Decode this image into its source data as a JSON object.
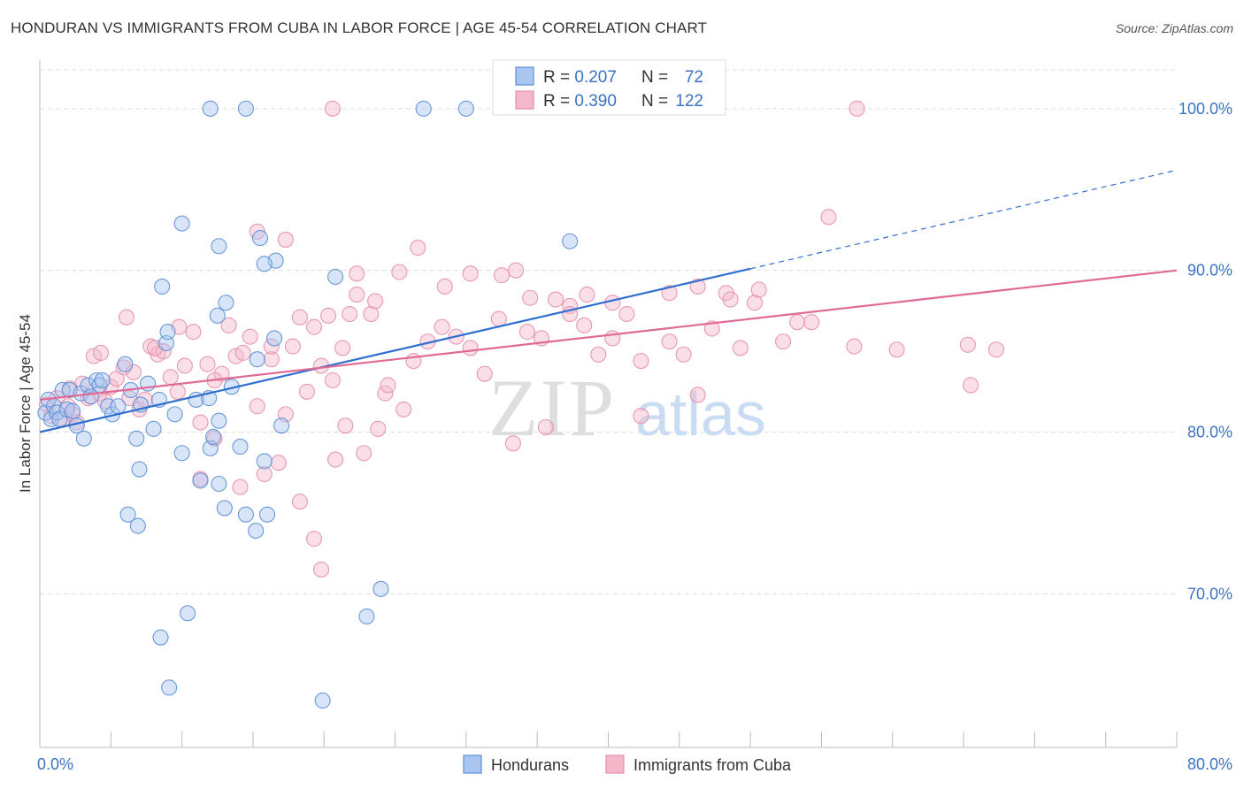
{
  "header": {
    "title": "HONDURAN VS IMMIGRANTS FROM CUBA IN LABOR FORCE | AGE 45-54 CORRELATION CHART",
    "source": "Source: ZipAtlas.com"
  },
  "watermark": {
    "zip": "ZIP",
    "atlas": "atlas"
  },
  "colors": {
    "blue_fill": "#a9c6f0",
    "blue_stroke": "#5b8fd6",
    "blue_line": "#2f6fcf",
    "pink_fill": "#f5b8cb",
    "pink_stroke": "#e58fab",
    "pink_line": "#e06a96",
    "tick_text": "#3b73c4",
    "grid": "#dddddd"
  },
  "legend": {
    "rows": [
      {
        "r_label": "R = ",
        "r_value": "0.207",
        "n_label": "N = ",
        "n_value": "72"
      },
      {
        "r_label": "R = ",
        "r_value": "0.390",
        "n_label": "N = ",
        "n_value": "122"
      }
    ]
  },
  "chart_data": {
    "type": "scatter",
    "title": "HONDURAN VS IMMIGRANTS FROM CUBA IN LABOR FORCE | AGE 45-54 CORRELATION CHART",
    "xlabel": "",
    "ylabel": "In Labor Force | Age 45-54",
    "xlim": [
      0,
      80
    ],
    "ylim": [
      60.5,
      103
    ],
    "x_tick_labels": [
      {
        "value": 0,
        "label": "0.0%"
      },
      {
        "value": 80,
        "label": "80.0%"
      }
    ],
    "y_ticks": [
      {
        "value": 70,
        "label": "70.0%"
      },
      {
        "value": 80,
        "label": "80.0%"
      },
      {
        "value": 90,
        "label": "90.0%"
      },
      {
        "value": 100,
        "label": "100.0%"
      }
    ],
    "series": [
      {
        "name": "Hondurans",
        "R": 0.207,
        "N": 72,
        "trend": {
          "x0": 0,
          "y0": 80.0,
          "x1": 50,
          "y1": 90.1,
          "dashed_to_x": 80,
          "dashed_to_y": 96.2
        },
        "points": [
          [
            0.4,
            81.2
          ],
          [
            0.6,
            82.0
          ],
          [
            0.8,
            80.8
          ],
          [
            1.0,
            81.6
          ],
          [
            1.2,
            81.2
          ],
          [
            1.4,
            80.8
          ],
          [
            1.6,
            82.6
          ],
          [
            1.9,
            81.4
          ],
          [
            2.1,
            82.6
          ],
          [
            2.3,
            81.3
          ],
          [
            2.6,
            80.4
          ],
          [
            2.9,
            82.4
          ],
          [
            3.1,
            79.6
          ],
          [
            3.4,
            82.9
          ],
          [
            3.6,
            82.2
          ],
          [
            4.0,
            83.2
          ],
          [
            4.2,
            82.9
          ],
          [
            4.4,
            83.2
          ],
          [
            4.8,
            81.6
          ],
          [
            5.1,
            81.1
          ],
          [
            5.5,
            81.6
          ],
          [
            6.0,
            84.2
          ],
          [
            6.4,
            82.6
          ],
          [
            6.8,
            79.6
          ],
          [
            7.1,
            81.7
          ],
          [
            7.6,
            83.0
          ],
          [
            8.0,
            80.2
          ],
          [
            8.4,
            82.0
          ],
          [
            8.9,
            85.5
          ],
          [
            8.6,
            89.0
          ],
          [
            9.0,
            86.2
          ],
          [
            9.5,
            81.1
          ],
          [
            10.0,
            78.7
          ],
          [
            11.0,
            82.0
          ],
          [
            12.0,
            79.0
          ],
          [
            12.5,
            87.2
          ],
          [
            13.0,
            75.3
          ],
          [
            13.5,
            82.8
          ],
          [
            14.1,
            79.1
          ],
          [
            14.5,
            74.9
          ],
          [
            15.3,
            84.5
          ],
          [
            15.8,
            78.2
          ],
          [
            16.5,
            85.8
          ],
          [
            17.0,
            80.4
          ],
          [
            7.0,
            77.7
          ],
          [
            9.1,
            64.2
          ],
          [
            10.4,
            68.8
          ],
          [
            8.5,
            67.3
          ],
          [
            11.3,
            77.0
          ],
          [
            12.2,
            79.7
          ],
          [
            12.6,
            76.8
          ],
          [
            12.6,
            80.7
          ],
          [
            11.9,
            82.1
          ],
          [
            15.2,
            73.9
          ],
          [
            16.0,
            74.9
          ],
          [
            15.5,
            92.0
          ],
          [
            16.6,
            90.6
          ],
          [
            15.8,
            90.4
          ],
          [
            10.0,
            92.9
          ],
          [
            12.6,
            91.5
          ],
          [
            13.1,
            88.0
          ],
          [
            20.8,
            89.6
          ],
          [
            37.3,
            91.8
          ],
          [
            24.0,
            70.3
          ],
          [
            23.0,
            68.6
          ],
          [
            19.9,
            63.4
          ],
          [
            12.0,
            100.0
          ],
          [
            14.5,
            100.0
          ],
          [
            27.0,
            100.0
          ],
          [
            30.0,
            100.0
          ],
          [
            6.2,
            74.9
          ],
          [
            6.9,
            74.2
          ]
        ]
      },
      {
        "name": "Immigrants from Cuba",
        "R": 0.39,
        "N": 122,
        "trend": {
          "x0": 0,
          "y0": 82.0,
          "x1": 80,
          "y1": 90.0
        },
        "points": [
          [
            0.5,
            81.7
          ],
          [
            0.8,
            81.0
          ],
          [
            1.2,
            82.1
          ],
          [
            1.6,
            80.8
          ],
          [
            2.0,
            81.6
          ],
          [
            2.3,
            81.1
          ],
          [
            2.6,
            80.6
          ],
          [
            3.0,
            83.0
          ],
          [
            3.4,
            82.1
          ],
          [
            3.8,
            84.7
          ],
          [
            4.2,
            82.4
          ],
          [
            4.6,
            81.9
          ],
          [
            5.0,
            82.8
          ],
          [
            5.4,
            83.3
          ],
          [
            5.9,
            84.0
          ],
          [
            6.3,
            82.1
          ],
          [
            6.6,
            83.7
          ],
          [
            7.0,
            81.4
          ],
          [
            7.4,
            82.0
          ],
          [
            7.8,
            85.3
          ],
          [
            8.3,
            84.8
          ],
          [
            8.7,
            85.0
          ],
          [
            9.2,
            83.4
          ],
          [
            9.7,
            82.5
          ],
          [
            10.2,
            84.1
          ],
          [
            10.8,
            86.2
          ],
          [
            11.3,
            80.6
          ],
          [
            11.8,
            84.2
          ],
          [
            12.3,
            79.6
          ],
          [
            12.8,
            83.6
          ],
          [
            13.3,
            86.6
          ],
          [
            13.8,
            84.7
          ],
          [
            14.3,
            84.9
          ],
          [
            14.8,
            85.9
          ],
          [
            15.3,
            81.6
          ],
          [
            15.8,
            77.4
          ],
          [
            16.3,
            84.5
          ],
          [
            16.8,
            78.1
          ],
          [
            17.3,
            81.1
          ],
          [
            17.8,
            85.3
          ],
          [
            18.3,
            87.1
          ],
          [
            18.8,
            82.5
          ],
          [
            19.3,
            86.5
          ],
          [
            19.8,
            84.1
          ],
          [
            20.3,
            87.2
          ],
          [
            20.8,
            78.3
          ],
          [
            21.3,
            85.2
          ],
          [
            21.8,
            87.3
          ],
          [
            22.3,
            89.8
          ],
          [
            22.8,
            78.7
          ],
          [
            23.3,
            87.3
          ],
          [
            23.8,
            80.2
          ],
          [
            24.3,
            82.4
          ],
          [
            25.3,
            89.9
          ],
          [
            26.3,
            84.4
          ],
          [
            27.3,
            85.6
          ],
          [
            28.3,
            86.5
          ],
          [
            29.3,
            85.9
          ],
          [
            30.3,
            85.2
          ],
          [
            31.3,
            83.6
          ],
          [
            32.3,
            87.0
          ],
          [
            33.3,
            79.3
          ],
          [
            34.3,
            86.2
          ],
          [
            35.3,
            85.8
          ],
          [
            36.3,
            88.2
          ],
          [
            37.3,
            87.8
          ],
          [
            38.3,
            86.6
          ],
          [
            39.3,
            84.8
          ],
          [
            40.3,
            85.8
          ],
          [
            41.3,
            87.3
          ],
          [
            42.3,
            84.4
          ],
          [
            44.3,
            85.6
          ],
          [
            45.3,
            84.8
          ],
          [
            46.3,
            82.3
          ],
          [
            47.3,
            86.4
          ],
          [
            48.3,
            88.6
          ],
          [
            49.3,
            85.2
          ],
          [
            50.3,
            88.0
          ],
          [
            52.3,
            85.6
          ],
          [
            53.3,
            86.8
          ],
          [
            54.3,
            86.8
          ],
          [
            57.3,
            85.3
          ],
          [
            60.3,
            85.1
          ],
          [
            65.3,
            85.4
          ],
          [
            67.3,
            85.1
          ],
          [
            65.5,
            82.9
          ],
          [
            55.5,
            93.3
          ],
          [
            57.5,
            100.0
          ],
          [
            20.6,
            100.0
          ],
          [
            2.1,
            82.7
          ],
          [
            4.3,
            84.9
          ],
          [
            6.1,
            87.1
          ],
          [
            8.1,
            85.2
          ],
          [
            9.8,
            86.5
          ],
          [
            11.3,
            77.1
          ],
          [
            12.3,
            83.2
          ],
          [
            14.1,
            76.6
          ],
          [
            15.3,
            92.4
          ],
          [
            16.3,
            85.3
          ],
          [
            17.3,
            91.9
          ],
          [
            18.3,
            75.7
          ],
          [
            19.3,
            73.4
          ],
          [
            19.8,
            71.5
          ],
          [
            20.6,
            83.2
          ],
          [
            21.5,
            80.4
          ],
          [
            22.3,
            88.5
          ],
          [
            23.6,
            88.1
          ],
          [
            24.5,
            82.9
          ],
          [
            25.6,
            81.4
          ],
          [
            26.6,
            91.4
          ],
          [
            28.5,
            89.0
          ],
          [
            30.3,
            89.8
          ],
          [
            32.5,
            89.7
          ],
          [
            33.5,
            90.0
          ],
          [
            34.5,
            88.3
          ],
          [
            35.6,
            80.3
          ],
          [
            37.3,
            87.3
          ],
          [
            38.5,
            88.5
          ],
          [
            40.3,
            88.0
          ],
          [
            42.3,
            81.0
          ],
          [
            44.3,
            88.6
          ],
          [
            46.3,
            89.0
          ],
          [
            48.6,
            88.2
          ],
          [
            50.6,
            88.8
          ]
        ]
      }
    ]
  }
}
